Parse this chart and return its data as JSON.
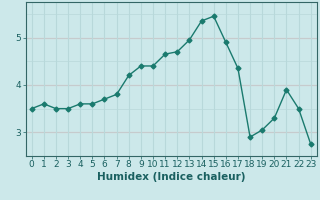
{
  "x": [
    0,
    1,
    2,
    3,
    4,
    5,
    6,
    7,
    8,
    9,
    10,
    11,
    12,
    13,
    14,
    15,
    16,
    17,
    18,
    19,
    20,
    21,
    22,
    23
  ],
  "y": [
    3.5,
    3.6,
    3.5,
    3.5,
    3.6,
    3.6,
    3.7,
    3.8,
    4.2,
    4.4,
    4.4,
    4.65,
    4.7,
    4.95,
    5.35,
    5.45,
    4.9,
    4.35,
    2.9,
    3.05,
    3.3,
    3.9,
    3.5,
    2.75
  ],
  "line_color": "#1a7a6e",
  "marker": "D",
  "marker_size": 2.5,
  "bg_color": "#cce8ea",
  "grid_color_h": "#e8b0b0",
  "grid_color_v": "#b8d8da",
  "axis_color": "#336666",
  "xlabel": "Humidex (Indice chaleur)",
  "xlabel_fontsize": 7.5,
  "xlabel_color": "#1a6060",
  "yticks": [
    3,
    4,
    5
  ],
  "xticks": [
    0,
    1,
    2,
    3,
    4,
    5,
    6,
    7,
    8,
    9,
    10,
    11,
    12,
    13,
    14,
    15,
    16,
    17,
    18,
    19,
    20,
    21,
    22,
    23
  ],
  "ylim": [
    2.5,
    5.75
  ],
  "xlim": [
    -0.5,
    23.5
  ],
  "tick_fontsize": 6.5,
  "tick_color": "#1a6060",
  "line_width": 1.0
}
